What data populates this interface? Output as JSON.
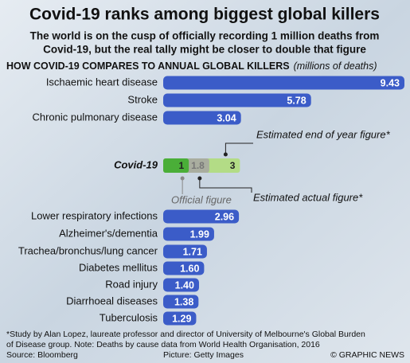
{
  "chart_data": {
    "type": "bar",
    "title": "Covid-19 ranks among biggest global killers",
    "subtitle": [
      "The world is on the cusp of officially recording 1 million deaths from",
      "Covid-19, but the real tally might be closer to double that figure"
    ],
    "heading": "HOW COVID-19 COMPARES TO ANNUAL GLOBAL KILLERS",
    "heading_unit": "(millions of deaths)",
    "categories": [
      "Ischaemic heart disease",
      "Stroke",
      "Chronic pulmonary disease",
      "Lower respiratory infections",
      "Alzheimer's/dementia",
      "Trachea/bronchus/lung cancer",
      "Diabetes mellitus",
      "Road injury",
      "Diarrhoeal diseases",
      "Tuberculosis"
    ],
    "values": [
      9.43,
      5.78,
      3.04,
      2.96,
      1.99,
      1.71,
      1.6,
      1.4,
      1.38,
      1.29
    ],
    "value_labels": [
      "9.43",
      "5.78",
      "3.04",
      "2.96",
      "1.99",
      "1.71",
      "1.60",
      "1.40",
      "1.38",
      "1.29"
    ],
    "color": "#3b5cc8",
    "covid": {
      "label": "Covid-19",
      "series": [
        {
          "name": "Estimated end of year figure*",
          "color": "#b3dc86",
          "values": [
            3
          ]
        },
        {
          "name": "Estimated actual figure*",
          "color": "#a9ad9f",
          "values": [
            1.8
          ]
        },
        {
          "name": "Official figure",
          "color": "#4aae38",
          "values": [
            1
          ]
        }
      ]
    },
    "footnote": [
      "*Study by Alan Lopez, laureate professor and director of University of Melbourne's Global Burden",
      "of Disease group. Note: Deaths by cause data from World Health Organisation, 2016"
    ],
    "source": "Source: Bloomberg",
    "picture": "Picture: Getty Images",
    "credit": "© GRAPHIC NEWS"
  }
}
